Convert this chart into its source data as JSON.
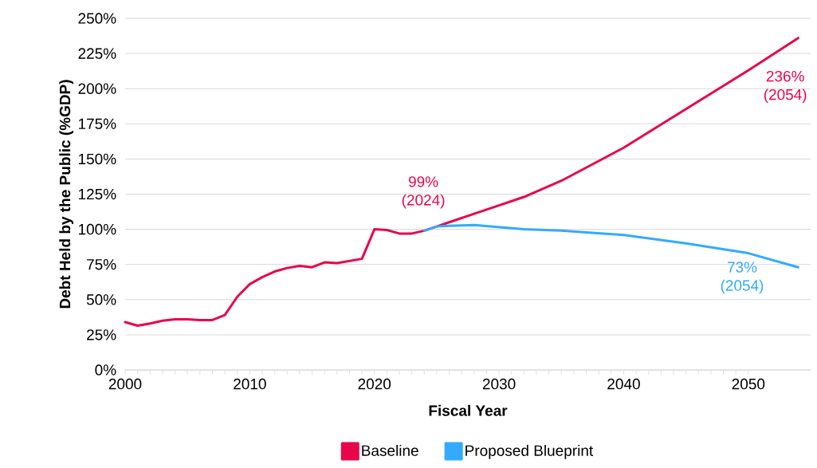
{
  "chart_data": {
    "type": "line",
    "xlabel": "Fiscal Year",
    "ylabel": "Debt Held by the Public (%GDP)",
    "xlim": [
      2000,
      2055
    ],
    "xticks": [
      2000,
      2010,
      2020,
      2030,
      2040,
      2050
    ],
    "ylim": [
      0,
      250
    ],
    "yticks": [
      {
        "value": 0,
        "label": "0%"
      },
      {
        "value": 25,
        "label": "25%"
      },
      {
        "value": 50,
        "label": "50%"
      },
      {
        "value": 75,
        "label": "75%"
      },
      {
        "value": 100,
        "label": "100%"
      },
      {
        "value": 125,
        "label": "125%"
      },
      {
        "value": 150,
        "label": "150%"
      },
      {
        "value": 175,
        "label": "175%"
      },
      {
        "value": 200,
        "label": "200%"
      },
      {
        "value": 225,
        "label": "225%"
      },
      {
        "value": 250,
        "label": "250%"
      }
    ],
    "grid": "y",
    "legend": "bottom",
    "line_style": "solid",
    "series": [
      {
        "name": "Baseline",
        "color": "#e8064a",
        "x": [
          2000,
          2001,
          2002,
          2003,
          2004,
          2005,
          2006,
          2007,
          2008,
          2009,
          2010,
          2011,
          2012,
          2013,
          2014,
          2015,
          2016,
          2017,
          2018,
          2019,
          2020,
          2021,
          2022,
          2023,
          2024,
          2025,
          2026,
          2028,
          2030,
          2032,
          2035,
          2040,
          2045,
          2050,
          2054
        ],
        "values": [
          34,
          31.5,
          33,
          35,
          36,
          36,
          35.5,
          35.5,
          39,
          52,
          61,
          66,
          70,
          72.5,
          74,
          73,
          76.5,
          76,
          77.5,
          79,
          100,
          99.5,
          97,
          97,
          99,
          102,
          105,
          111,
          117,
          123,
          134.5,
          158,
          185.5,
          213,
          236
        ]
      },
      {
        "name": "Proposed Blueprint",
        "color": "#33aaff",
        "x": [
          2024,
          2025,
          2026,
          2028,
          2030,
          2032,
          2035,
          2040,
          2045,
          2050,
          2054
        ],
        "values": [
          99,
          102,
          102.5,
          103,
          101.5,
          100,
          99,
          96,
          90,
          83,
          73
        ]
      }
    ],
    "annotations": [
      "99% (2024)",
      "236% (2054)",
      "73% (2054)"
    ]
  }
}
